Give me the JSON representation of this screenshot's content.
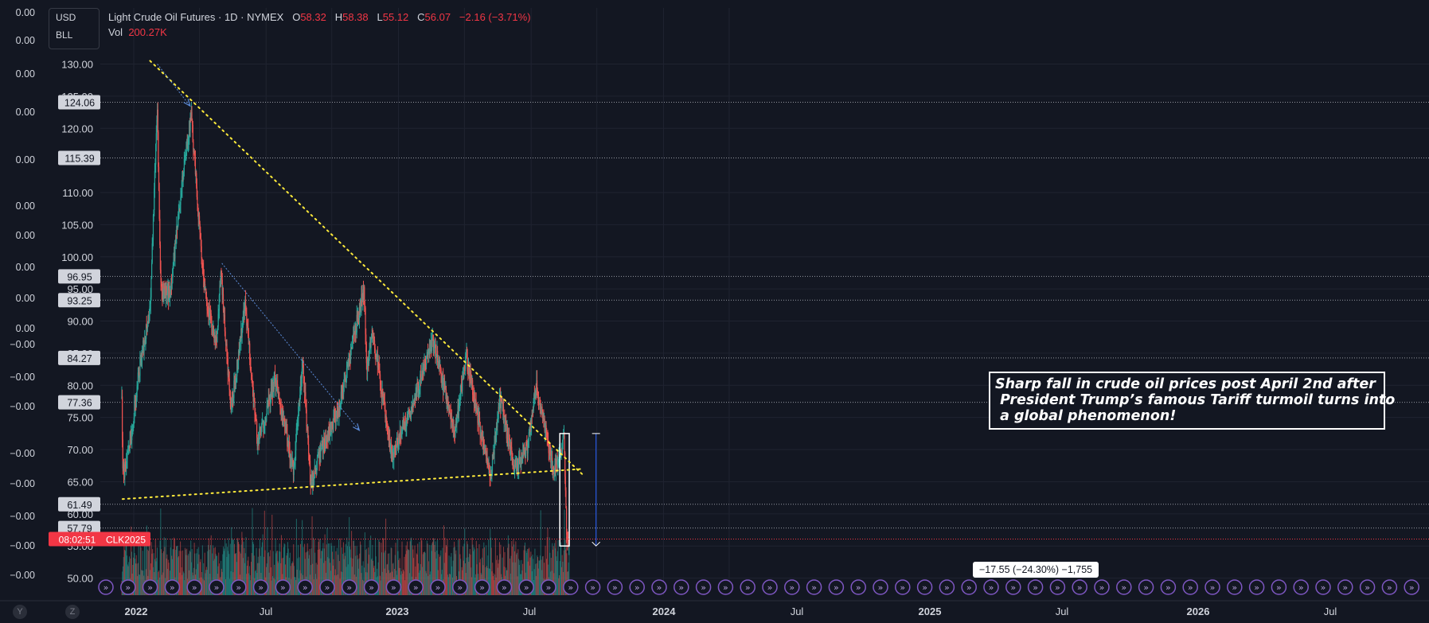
{
  "header": {
    "title": "Light Crude Oil Futures · 1D · NYMEX",
    "o_label": "O",
    "o_value": "58.32",
    "h_label": "H",
    "h_value": "58.38",
    "l_label": "L",
    "l_value": "55.12",
    "c_label": "C",
    "c_value": "56.07",
    "change": "−2.16 (−3.71%)",
    "vol_label": "Vol",
    "vol_value": "200.27K"
  },
  "currency": {
    "currency": "USD",
    "unit": "BLL"
  },
  "colors": {
    "background": "#131722",
    "up": "#26a69a",
    "down": "#ef5350",
    "trendline": "#ffeb3b",
    "arrow": "#2962ff",
    "event_icon": "#7e57c2"
  },
  "left_scale_labels": [
    "0.00",
    "0.00",
    "0.00",
    "0.00",
    "0.00",
    "0.00",
    "0.00",
    "0.00",
    "0.00",
    "0.00",
    "−0.00",
    "−0.00",
    "−0.00",
    "−0.00",
    "−0.00",
    "−0.00",
    "−0.00",
    "−0.00"
  ],
  "icons": [
    "double-chevron-right-icon"
  ],
  "chart_data": {
    "type": "candlestick",
    "title": "Light Crude Oil Futures · 1D · NYMEX",
    "symbol": "CLK2025",
    "countdown": "08:02:51",
    "y_ticks": [
      "130.00",
      "125.00",
      "120.00",
      "110.00",
      "105.00",
      "100.00",
      "95.00",
      "90.00",
      "85.00",
      "80.00",
      "75.00",
      "70.00",
      "65.00",
      "60.00",
      "55.00",
      "50.00"
    ],
    "x_ticks": [
      "2022",
      "Jul",
      "2023",
      "Jul",
      "2024",
      "Jul",
      "2025",
      "Jul",
      "2026",
      "Jul"
    ],
    "axis_buttons": [
      "Y",
      "Z"
    ],
    "ylim": [
      50,
      135
    ],
    "horizontal_levels": [
      {
        "label": "124.06",
        "value": 124.06
      },
      {
        "label": "115.39",
        "value": 115.39
      },
      {
        "label": "96.95",
        "value": 96.95
      },
      {
        "label": "93.25",
        "value": 93.25
      },
      {
        "label": "84.27",
        "value": 84.27
      },
      {
        "label": "77.36",
        "value": 77.36
      },
      {
        "label": "61.49",
        "value": 61.49
      },
      {
        "label": "57.79",
        "value": 57.79
      }
    ],
    "price_path": [
      {
        "x": "2021-11-29",
        "y": 78
      },
      {
        "x": "2021-12-02",
        "y": 66
      },
      {
        "x": "2021-12-20",
        "y": 70
      },
      {
        "x": "2022-01-15",
        "y": 82
      },
      {
        "x": "2022-02-15",
        "y": 92
      },
      {
        "x": "2022-03-07",
        "y": 123.7
      },
      {
        "x": "2022-03-16",
        "y": 95
      },
      {
        "x": "2022-04-11",
        "y": 94
      },
      {
        "x": "2022-05-15",
        "y": 112
      },
      {
        "x": "2022-06-08",
        "y": 122.1
      },
      {
        "x": "2022-07-14",
        "y": 95
      },
      {
        "x": "2022-08-16",
        "y": 86
      },
      {
        "x": "2022-08-29",
        "y": 97.5
      },
      {
        "x": "2022-09-26",
        "y": 76
      },
      {
        "x": "2022-11-04",
        "y": 92.5
      },
      {
        "x": "2022-12-09",
        "y": 71
      },
      {
        "x": "2023-01-27",
        "y": 81
      },
      {
        "x": "2023-03-17",
        "y": 66.7
      },
      {
        "x": "2023-04-12",
        "y": 83.5
      },
      {
        "x": "2023-05-04",
        "y": 64.5
      },
      {
        "x": "2023-06-15",
        "y": 72
      },
      {
        "x": "2023-07-15",
        "y": 75
      },
      {
        "x": "2023-09-28",
        "y": 95.1
      },
      {
        "x": "2023-10-06",
        "y": 82
      },
      {
        "x": "2023-10-20",
        "y": 89
      },
      {
        "x": "2023-12-13",
        "y": 68.7
      },
      {
        "x": "2024-02-15",
        "y": 78
      },
      {
        "x": "2024-04-05",
        "y": 87
      },
      {
        "x": "2024-06-04",
        "y": 72.5
      },
      {
        "x": "2024-07-05",
        "y": 84.5
      },
      {
        "x": "2024-09-10",
        "y": 65.3
      },
      {
        "x": "2024-10-07",
        "y": 78
      },
      {
        "x": "2024-11-15",
        "y": 67
      },
      {
        "x": "2024-12-20",
        "y": 70
      },
      {
        "x": "2025-01-15",
        "y": 80
      },
      {
        "x": "2025-03-05",
        "y": 66.5
      },
      {
        "x": "2025-04-02",
        "y": 72
      },
      {
        "x": "2025-04-09",
        "y": 55.1
      },
      {
        "x": "2025-04-16",
        "y": 56.1
      }
    ],
    "last_price": {
      "label": "CLK2025",
      "value": 56.07
    },
    "trendlines": [
      {
        "name": "",
        "style": "dotted",
        "points": [
          {
            "x": "2022-02-15",
            "y": 130.5
          },
          {
            "x": "2025-05-25",
            "y": 66
          }
        ]
      },
      {
        "name": "",
        "style": "dotted",
        "points": [
          {
            "x": "2021-12-01",
            "y": 62.3
          },
          {
            "x": "2025-05-25",
            "y": 67
          }
        ]
      }
    ],
    "arrows": [
      {
        "from": {
          "x": "2022-03-07",
          "y": 130
        },
        "to": {
          "x": "2022-06-05",
          "y": 123.5
        }
      },
      {
        "from": {
          "x": "2022-09-01",
          "y": 99
        },
        "to": {
          "x": "2023-09-15",
          "y": 73
        }
      }
    ],
    "measure": {
      "label": "−17.55 (−24.30%) −1,755",
      "from": {
        "x": "2025-04-24",
        "y": 72.5
      },
      "to": {
        "x": "2025-04-24",
        "y": 55
      }
    },
    "highlight_box": {
      "from": {
        "x": "2025-03-21",
        "y": 72.5
      },
      "to": {
        "x": "2025-04-16",
        "y": 55
      }
    },
    "annotation": "Sharp fall in crude oil prices post April 2nd after\n President Trump’s famous Tariff turmoil turns into\n a global phenomenon!"
  }
}
